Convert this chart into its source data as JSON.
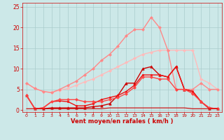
{
  "bg_color": "#cce8e8",
  "grid_color": "#aacccc",
  "xlabel": "Vent moyen/en rafales ( km/h )",
  "xlabel_color": "#cc0000",
  "tick_color": "#cc0000",
  "xlim": [
    -0.5,
    23.5
  ],
  "ylim": [
    -0.5,
    26
  ],
  "yticks": [
    0,
    5,
    10,
    15,
    20,
    25
  ],
  "xticks": [
    0,
    1,
    2,
    3,
    4,
    5,
    6,
    7,
    8,
    9,
    10,
    11,
    12,
    13,
    14,
    15,
    16,
    17,
    18,
    19,
    20,
    21,
    22,
    23
  ],
  "series": [
    {
      "x": [
        0,
        1,
        2,
        3,
        4,
        5,
        6,
        7,
        8,
        9,
        10,
        11,
        12,
        13,
        14,
        15,
        16,
        17,
        18,
        19,
        20,
        21,
        22,
        23
      ],
      "y": [
        6.5,
        5.2,
        4.5,
        4.2,
        4.8,
        5.2,
        6.0,
        6.8,
        7.5,
        8.5,
        9.5,
        10.5,
        11.5,
        12.5,
        13.5,
        14.0,
        14.5,
        14.5,
        14.5,
        14.5,
        14.5,
        7.5,
        6.5,
        5.0
      ],
      "color": "#ffbbbb",
      "lw": 1.0,
      "marker": "D",
      "ms": 2.0
    },
    {
      "x": [
        0,
        1,
        2,
        3,
        4,
        5,
        6,
        7,
        8,
        9,
        10,
        11,
        12,
        13,
        14,
        15,
        16,
        17,
        18,
        19,
        20,
        21,
        22,
        23
      ],
      "y": [
        6.5,
        5.2,
        4.5,
        4.2,
        5.0,
        6.0,
        7.0,
        8.5,
        10.0,
        12.0,
        13.5,
        15.5,
        18.0,
        19.5,
        19.5,
        22.5,
        20.0,
        14.5,
        5.0,
        5.0,
        5.0,
        6.5,
        5.0,
        5.0
      ],
      "color": "#ff8888",
      "lw": 1.0,
      "marker": "D",
      "ms": 2.0
    },
    {
      "x": [
        0,
        1,
        2,
        3,
        4,
        5,
        6,
        7,
        8,
        9,
        10,
        11,
        12,
        13,
        14,
        15,
        16,
        17,
        18,
        19,
        20,
        21,
        22,
        23
      ],
      "y": [
        3.5,
        0.3,
        0.3,
        0.5,
        0.5,
        0.5,
        0.5,
        0.5,
        0.8,
        1.0,
        1.5,
        3.5,
        6.5,
        6.5,
        10.0,
        10.5,
        8.5,
        8.0,
        10.5,
        5.0,
        4.5,
        2.0,
        0.3,
        0.3
      ],
      "color": "#cc0000",
      "lw": 1.0,
      "marker": "^",
      "ms": 2.5
    },
    {
      "x": [
        0,
        1,
        2,
        3,
        4,
        5,
        6,
        7,
        8,
        9,
        10,
        11,
        12,
        13,
        14,
        15,
        16,
        17,
        18,
        19,
        20,
        21,
        22,
        23
      ],
      "y": [
        3.5,
        0.3,
        0.5,
        2.0,
        2.2,
        2.0,
        1.0,
        1.0,
        1.5,
        2.5,
        3.0,
        3.5,
        4.5,
        6.0,
        8.5,
        8.5,
        8.5,
        8.0,
        10.5,
        5.0,
        4.5,
        2.0,
        0.5,
        0.3
      ],
      "color": "#ee1111",
      "lw": 1.0,
      "marker": "s",
      "ms": 2.0
    },
    {
      "x": [
        0,
        1,
        2,
        3,
        4,
        5,
        6,
        7,
        8,
        9,
        10,
        11,
        12,
        13,
        14,
        15,
        16,
        17,
        18,
        19,
        20,
        21,
        22,
        23
      ],
      "y": [
        3.5,
        0.3,
        0.5,
        2.0,
        2.5,
        2.5,
        2.5,
        2.0,
        2.0,
        2.0,
        2.5,
        3.0,
        4.0,
        5.5,
        8.0,
        8.0,
        7.5,
        7.5,
        5.0,
        5.0,
        4.0,
        2.0,
        0.5,
        0.3
      ],
      "color": "#ff4444",
      "lw": 1.0,
      "marker": "D",
      "ms": 2.0
    },
    {
      "x": [
        0,
        1,
        2,
        3,
        4,
        5,
        6,
        7,
        8,
        9,
        10,
        11,
        12,
        13,
        14,
        15,
        16,
        17,
        18,
        19,
        20,
        21,
        22,
        23
      ],
      "y": [
        0.3,
        0.3,
        0.3,
        0.3,
        0.3,
        0.3,
        0.3,
        0.3,
        0.3,
        0.3,
        0.5,
        0.5,
        0.5,
        0.5,
        0.5,
        0.5,
        0.5,
        0.5,
        0.5,
        0.5,
        0.3,
        0.3,
        0.3,
        0.3
      ],
      "color": "#cc0000",
      "lw": 0.8,
      "marker": null,
      "ms": 0
    }
  ]
}
